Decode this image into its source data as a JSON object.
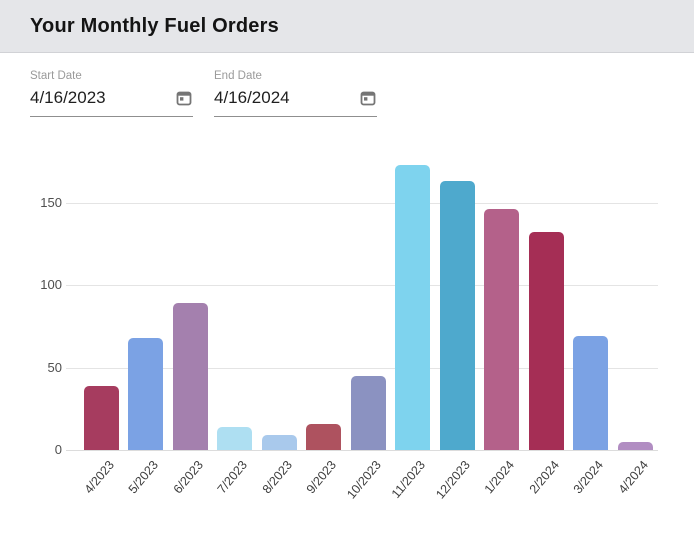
{
  "header": {
    "title": "Your Monthly Fuel Orders"
  },
  "filters": {
    "start": {
      "label": "Start Date",
      "value": "4/16/2023",
      "icon": "calendar-icon"
    },
    "end": {
      "label": "End Date",
      "value": "4/16/2024",
      "icon": "calendar-icon"
    }
  },
  "chart_data": {
    "type": "bar",
    "title": "Your Monthly Fuel Orders",
    "categories": [
      "4/2023",
      "5/2023",
      "6/2023",
      "7/2023",
      "8/2023",
      "9/2023",
      "10/2023",
      "11/2023",
      "12/2023",
      "1/2024",
      "2/2024",
      "3/2024",
      "4/2024"
    ],
    "values": [
      39,
      68,
      89,
      14,
      9,
      16,
      45,
      173,
      163,
      146,
      132,
      69,
      5
    ],
    "bar_colors": [
      "#a63c5f",
      "#7ba2e4",
      "#a480ae",
      "#aedff2",
      "#a9c9ec",
      "#ae525f",
      "#8b92c1",
      "#7ed3ee",
      "#4ea9cd",
      "#b4618a",
      "#a52e55",
      "#7ba2e4",
      "#b18dc2"
    ],
    "xlabel": "",
    "ylabel": "",
    "yticks": [
      0,
      50,
      100,
      150
    ],
    "ylim": [
      0,
      180
    ],
    "grid": true,
    "legend": false
  },
  "theme": {
    "header_bg": "#e5e6e9",
    "header_border": "#d1d2d6",
    "field_label_color": "#9a9a9a",
    "field_value_color": "#1f1f1f",
    "underline_color": "#8f8f8f",
    "grid_color": "#e4e4e4",
    "tick_color": "#4f4f4f",
    "icon_color": "#757575"
  }
}
